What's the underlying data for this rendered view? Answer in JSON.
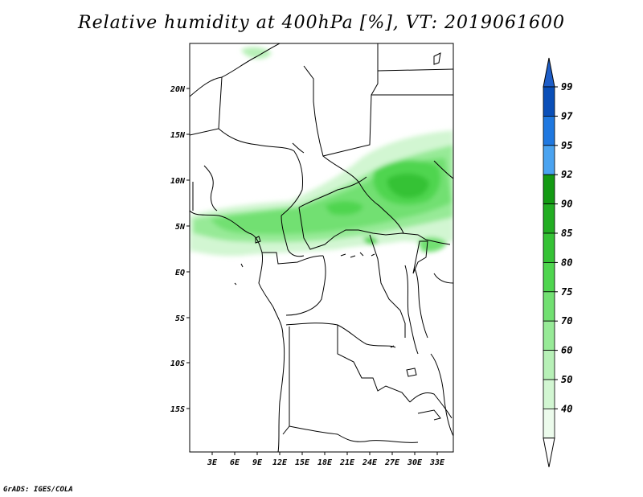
{
  "title": "Relative humidity at 400hPa [%], VT: 2019061600",
  "footer": "GrADS: IGES/COLA",
  "map": {
    "lat_labels": [
      "20N",
      "15N",
      "10N",
      "5N",
      "EQ",
      "5S",
      "10S",
      "15S"
    ],
    "lon_labels": [
      "3E",
      "6E",
      "9E",
      "12E",
      "15E",
      "18E",
      "21E",
      "24E",
      "27E",
      "30E",
      "33E"
    ]
  },
  "colorbar": {
    "levels": [
      "99",
      "97",
      "95",
      "92",
      "90",
      "85",
      "80",
      "75",
      "70",
      "60",
      "50",
      "40"
    ],
    "colors": [
      "#0a4fb8",
      "#1f78e0",
      "#4aa3f0",
      "#139a13",
      "#22ad22",
      "#35c235",
      "#4fd54f",
      "#72e072",
      "#97ea97",
      "#b7f0b7",
      "#d2f6d2",
      "#ecfbec"
    ],
    "top_arrow_color": "#1e5ec8"
  }
}
